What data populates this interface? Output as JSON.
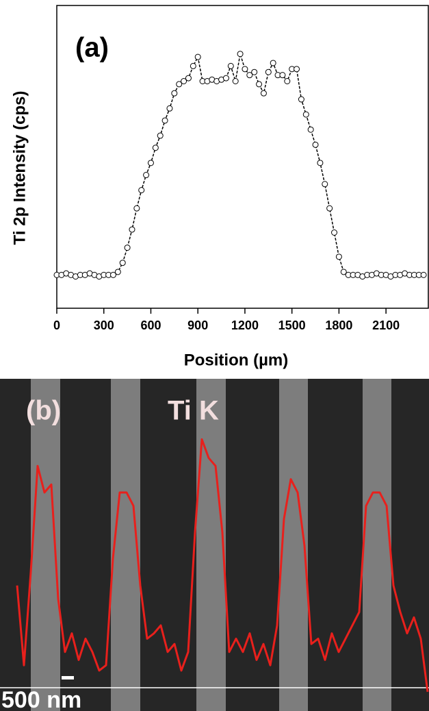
{
  "chart_data": [
    {
      "type": "line",
      "title": "(a)",
      "xlabel": "Position (µm)",
      "ylabel": "Ti 2p Intensity (cps)",
      "marker": "open-circle",
      "color": "#000000",
      "x": [
        0,
        30,
        60,
        90,
        120,
        150,
        180,
        210,
        240,
        270,
        300,
        330,
        360,
        390,
        420,
        450,
        480,
        510,
        540,
        570,
        600,
        630,
        660,
        690,
        720,
        750,
        780,
        810,
        840,
        870,
        900,
        930,
        960,
        990,
        1020,
        1050,
        1080,
        1110,
        1140,
        1170,
        1200,
        1230,
        1260,
        1290,
        1320,
        1350,
        1380,
        1410,
        1440,
        1470,
        1500,
        1530,
        1560,
        1590,
        1620,
        1650,
        1680,
        1710,
        1740,
        1770,
        1800,
        1830,
        1860,
        1890,
        1920,
        1950,
        1980,
        2010,
        2040,
        2070,
        2100,
        2130,
        2160,
        2190,
        2220,
        2250,
        2280,
        2310,
        2340
      ],
      "values": [
        11,
        11,
        11.5,
        11,
        10.5,
        11,
        11,
        11.5,
        11,
        10.5,
        11,
        11,
        11,
        12,
        15,
        20,
        26,
        33,
        39,
        44,
        48,
        53,
        57,
        62,
        66,
        71,
        74,
        75,
        76,
        80,
        83,
        75,
        75,
        75.5,
        75,
        75.5,
        76,
        80,
        75,
        84,
        79,
        77,
        78,
        74,
        71,
        78,
        81,
        77,
        77,
        75,
        79,
        79,
        69,
        64,
        59,
        54,
        48,
        41,
        33,
        25,
        17,
        12,
        11,
        11,
        11,
        10.5,
        11,
        11,
        11.5,
        11,
        11,
        10.5,
        11,
        11,
        11.5,
        11,
        11,
        11,
        11
      ],
      "xlim": [
        0,
        2370
      ],
      "xticks": [
        0,
        300,
        600,
        900,
        1200,
        1500,
        1800,
        2100
      ],
      "ylim": [
        0,
        100
      ]
    },
    {
      "type": "line",
      "title": "(b)",
      "annotations": [
        "500 nm"
      ],
      "series": [
        {
          "name": "Ti K",
          "color": "#e8201c",
          "values": [
            40,
            10,
            45,
            85,
            75,
            78,
            35,
            15,
            22,
            12,
            20,
            15,
            8,
            10,
            50,
            75,
            75,
            70,
            40,
            20,
            22,
            25,
            15,
            18,
            8,
            15,
            60,
            95,
            88,
            85,
            60,
            15,
            20,
            15,
            22,
            12,
            18,
            10,
            25,
            65,
            80,
            75,
            55,
            18,
            20,
            12,
            22,
            15,
            20,
            25,
            30,
            70,
            75,
            75,
            70,
            40,
            30,
            22,
            28,
            20,
            0
          ]
        }
      ],
      "ylim": [
        0,
        100
      ]
    }
  ]
}
